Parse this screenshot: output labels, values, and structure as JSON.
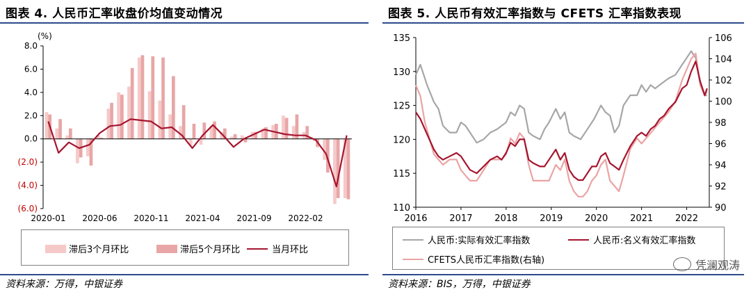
{
  "figure4": {
    "title": "图表 4. 人民币汇率收盘价均值变动情况",
    "source": "资料来源：万得，中银证券",
    "chart_data": {
      "type": "bar",
      "yunit": "(%)",
      "ylim": [
        -6,
        8
      ],
      "yticks": [
        {
          "v": 8,
          "label": "8.0",
          "color": "#000000"
        },
        {
          "v": 6,
          "label": "6.0",
          "color": "#000000"
        },
        {
          "v": 4,
          "label": "4.0",
          "color": "#000000"
        },
        {
          "v": 2,
          "label": "2.0",
          "color": "#000000"
        },
        {
          "v": 0,
          "label": "0.0",
          "color": "#000000"
        },
        {
          "v": -2,
          "label": "(2.0)",
          "color": "#c00000"
        },
        {
          "v": -4,
          "label": "(4.0)",
          "color": "#c00000"
        },
        {
          "v": -6,
          "label": "(6.0)",
          "color": "#c00000"
        }
      ],
      "xtick_labels": [
        {
          "i": 0,
          "label": "2020-01"
        },
        {
          "i": 5,
          "label": "2020-06"
        },
        {
          "i": 10,
          "label": "2020-11"
        },
        {
          "i": 15,
          "label": "2021-04"
        },
        {
          "i": 20,
          "label": "2021-09"
        },
        {
          "i": 25,
          "label": "2022-02"
        }
      ],
      "n_months": 30,
      "series": [
        {
          "name": "滞后3个月环比",
          "kind": "bar",
          "color": "#f6c9c9",
          "values": [
            2.3,
            0.9,
            0.3,
            -2.1,
            -1.5,
            0.3,
            2.6,
            4.0,
            4.5,
            7.0,
            4.1,
            3.3,
            2.1,
            1.1,
            -0.6,
            -0.5,
            1.1,
            0.6,
            0.2,
            0.3,
            0.6,
            0.9,
            1.2,
            2.0,
            1.1,
            0.6,
            -0.2,
            -1.8,
            -5.6,
            -5.1
          ]
        },
        {
          "name": "滞后5个月环比",
          "kind": "bar",
          "color": "#e8a6a6",
          "values": [
            2.1,
            1.7,
            0.9,
            -1.6,
            -2.3,
            0.1,
            3.1,
            3.8,
            6.1,
            7.2,
            7.1,
            7.0,
            5.4,
            2.9,
            1.3,
            1.4,
            1.5,
            0.9,
            0.4,
            -0.3,
            0.6,
            1.0,
            1.3,
            1.8,
            2.1,
            1.1,
            -0.7,
            -2.9,
            -5.1,
            -5.2
          ]
        },
        {
          "name": "当月环比",
          "kind": "line",
          "color": "#a5142e",
          "values": [
            1.5,
            -1.2,
            -0.3,
            -0.8,
            -0.5,
            0.5,
            1.1,
            1.2,
            1.7,
            1.6,
            1.5,
            0.9,
            1.0,
            0.3,
            -0.8,
            0.3,
            1.2,
            0.3,
            -0.7,
            0.0,
            0.4,
            0.8,
            0.6,
            0.4,
            0.3,
            0.3,
            -0.1,
            -1.3,
            -4.1,
            0.3
          ]
        }
      ]
    },
    "legend": {
      "bar3": "滞后3个月环比",
      "bar5": "滞后5个月环比",
      "line": "当月环比"
    }
  },
  "figure5": {
    "title": "图表 5. 人民币有效汇率指数与 CFETS 汇率指数表现",
    "source": "资料来源：BIS，万得，中银证券",
    "chart_data": {
      "type": "line",
      "ylim_left": [
        110,
        135
      ],
      "ylim_right": [
        90,
        106
      ],
      "yticks_left": [
        135,
        130,
        125,
        120,
        115,
        110
      ],
      "yticks_right": [
        106,
        104,
        102,
        100,
        98,
        96,
        94,
        92,
        90
      ],
      "xlim": [
        2016,
        2022.5
      ],
      "xtick_labels": [
        {
          "v": 2016,
          "label": "2016"
        },
        {
          "v": 2017,
          "label": "2017"
        },
        {
          "v": 2018,
          "label": "2018"
        },
        {
          "v": 2019,
          "label": "2019"
        },
        {
          "v": 2020,
          "label": "2020"
        },
        {
          "v": 2021,
          "label": "2021"
        },
        {
          "v": 2022,
          "label": "2022"
        }
      ],
      "series": [
        {
          "name": "人民币:实际有效汇率指数",
          "axis": "left",
          "color": "#a6a6a6",
          "points": [
            [
              2016.0,
              129.5
            ],
            [
              2016.1,
              131.0
            ],
            [
              2016.25,
              128.0
            ],
            [
              2016.4,
              125.5
            ],
            [
              2016.5,
              124.5
            ],
            [
              2016.6,
              122.0
            ],
            [
              2016.75,
              121.0
            ],
            [
              2016.9,
              121.0
            ],
            [
              2017.0,
              122.5
            ],
            [
              2017.1,
              122.0
            ],
            [
              2017.2,
              121.0
            ],
            [
              2017.35,
              119.5
            ],
            [
              2017.5,
              120.0
            ],
            [
              2017.65,
              121.0
            ],
            [
              2017.8,
              121.5
            ],
            [
              2017.9,
              122.0
            ],
            [
              2018.0,
              122.5
            ],
            [
              2018.1,
              124.0
            ],
            [
              2018.2,
              123.5
            ],
            [
              2018.3,
              125.0
            ],
            [
              2018.4,
              124.5
            ],
            [
              2018.5,
              121.0
            ],
            [
              2018.6,
              120.5
            ],
            [
              2018.75,
              120.0
            ],
            [
              2018.85,
              121.5
            ],
            [
              2018.95,
              122.5
            ],
            [
              2019.1,
              124.5
            ],
            [
              2019.2,
              123.0
            ],
            [
              2019.3,
              124.0
            ],
            [
              2019.4,
              121.0
            ],
            [
              2019.5,
              120.5
            ],
            [
              2019.65,
              120.0
            ],
            [
              2019.8,
              121.5
            ],
            [
              2019.95,
              123.0
            ],
            [
              2020.1,
              125.0
            ],
            [
              2020.2,
              124.0
            ],
            [
              2020.3,
              123.5
            ],
            [
              2020.4,
              121.0
            ],
            [
              2020.5,
              122.0
            ],
            [
              2020.6,
              125.0
            ],
            [
              2020.75,
              126.5
            ],
            [
              2020.9,
              126.5
            ],
            [
              2021.0,
              128.0
            ],
            [
              2021.1,
              127.0
            ],
            [
              2021.2,
              128.0
            ],
            [
              2021.3,
              127.5
            ],
            [
              2021.4,
              128.0
            ],
            [
              2021.5,
              128.5
            ],
            [
              2021.6,
              129.0
            ],
            [
              2021.75,
              129.5
            ],
            [
              2021.9,
              131.0
            ],
            [
              2022.0,
              132.0
            ],
            [
              2022.1,
              133.0
            ],
            [
              2022.2,
              132.0
            ],
            [
              2022.3,
              128.0
            ],
            [
              2022.4,
              126.5
            ],
            [
              2022.45,
              126.5
            ]
          ]
        },
        {
          "name": "人民币:名义有效汇率指数",
          "axis": "left",
          "color": "#a5142e",
          "points": [
            [
              2016.0,
              124.0
            ],
            [
              2016.1,
              123.0
            ],
            [
              2016.2,
              121.5
            ],
            [
              2016.3,
              120.0
            ],
            [
              2016.4,
              118.5
            ],
            [
              2016.5,
              117.5
            ],
            [
              2016.6,
              117.0
            ],
            [
              2016.75,
              117.5
            ],
            [
              2016.9,
              118.0
            ],
            [
              2017.0,
              117.5
            ],
            [
              2017.1,
              116.5
            ],
            [
              2017.2,
              115.5
            ],
            [
              2017.35,
              115.0
            ],
            [
              2017.5,
              116.0
            ],
            [
              2017.65,
              117.0
            ],
            [
              2017.8,
              117.5
            ],
            [
              2017.9,
              117.0
            ],
            [
              2018.0,
              118.0
            ],
            [
              2018.1,
              119.5
            ],
            [
              2018.2,
              119.0
            ],
            [
              2018.3,
              120.0
            ],
            [
              2018.4,
              120.0
            ],
            [
              2018.5,
              117.0
            ],
            [
              2018.6,
              116.5
            ],
            [
              2018.75,
              116.0
            ],
            [
              2018.85,
              116.0
            ],
            [
              2018.95,
              117.0
            ],
            [
              2019.1,
              118.5
            ],
            [
              2019.2,
              117.0
            ],
            [
              2019.3,
              118.0
            ],
            [
              2019.4,
              115.5
            ],
            [
              2019.5,
              114.5
            ],
            [
              2019.6,
              114.0
            ],
            [
              2019.7,
              114.0
            ],
            [
              2019.8,
              115.0
            ],
            [
              2019.9,
              116.0
            ],
            [
              2020.0,
              116.0
            ],
            [
              2020.1,
              117.5
            ],
            [
              2020.2,
              118.0
            ],
            [
              2020.3,
              116.5
            ],
            [
              2020.4,
              116.0
            ],
            [
              2020.5,
              115.5
            ],
            [
              2020.6,
              117.0
            ],
            [
              2020.75,
              119.0
            ],
            [
              2020.9,
              120.5
            ],
            [
              2021.0,
              121.0
            ],
            [
              2021.1,
              120.5
            ],
            [
              2021.2,
              121.5
            ],
            [
              2021.3,
              122.0
            ],
            [
              2021.4,
              123.0
            ],
            [
              2021.5,
              123.5
            ],
            [
              2021.6,
              124.5
            ],
            [
              2021.75,
              125.5
            ],
            [
              2021.9,
              127.5
            ],
            [
              2022.0,
              128.0
            ],
            [
              2022.1,
              130.0
            ],
            [
              2022.2,
              131.5
            ],
            [
              2022.3,
              128.5
            ],
            [
              2022.4,
              126.5
            ],
            [
              2022.45,
              127.5
            ]
          ]
        },
        {
          "name": "CFETS人民币汇率指数(右轴)",
          "axis": "right",
          "color": "#eba3a3",
          "points": [
            [
              2016.0,
              101.5
            ],
            [
              2016.1,
              100.5
            ],
            [
              2016.2,
              98.0
            ],
            [
              2016.3,
              96.5
            ],
            [
              2016.4,
              95.0
            ],
            [
              2016.5,
              94.5
            ],
            [
              2016.6,
              94.0
            ],
            [
              2016.75,
              94.5
            ],
            [
              2016.9,
              94.5
            ],
            [
              2017.0,
              93.5
            ],
            [
              2017.1,
              93.0
            ],
            [
              2017.2,
              92.5
            ],
            [
              2017.35,
              92.5
            ],
            [
              2017.5,
              93.5
            ],
            [
              2017.65,
              94.5
            ],
            [
              2017.8,
              94.5
            ],
            [
              2017.9,
              94.5
            ],
            [
              2018.0,
              95.0
            ],
            [
              2018.1,
              96.5
            ],
            [
              2018.2,
              96.0
            ],
            [
              2018.3,
              97.0
            ],
            [
              2018.4,
              96.5
            ],
            [
              2018.5,
              94.0
            ],
            [
              2018.6,
              92.5
            ],
            [
              2018.75,
              92.5
            ],
            [
              2018.85,
              92.5
            ],
            [
              2018.95,
              92.5
            ],
            [
              2019.1,
              94.0
            ],
            [
              2019.2,
              93.5
            ],
            [
              2019.3,
              94.5
            ],
            [
              2019.4,
              92.5
            ],
            [
              2019.5,
              91.5
            ],
            [
              2019.6,
              91.0
            ],
            [
              2019.7,
              91.0
            ],
            [
              2019.8,
              91.5
            ],
            [
              2019.9,
              92.5
            ],
            [
              2020.0,
              93.0
            ],
            [
              2020.1,
              94.0
            ],
            [
              2020.2,
              94.5
            ],
            [
              2020.3,
              92.5
            ],
            [
              2020.4,
              92.0
            ],
            [
              2020.5,
              91.5
            ],
            [
              2020.6,
              93.0
            ],
            [
              2020.75,
              95.5
            ],
            [
              2020.9,
              96.5
            ],
            [
              2021.0,
              96.0
            ],
            [
              2021.1,
              96.5
            ],
            [
              2021.2,
              97.0
            ],
            [
              2021.3,
              97.5
            ],
            [
              2021.4,
              98.0
            ],
            [
              2021.5,
              98.5
            ],
            [
              2021.6,
              99.0
            ],
            [
              2021.75,
              100.0
            ],
            [
              2021.9,
              102.0
            ],
            [
              2022.0,
              103.0
            ],
            [
              2022.1,
              104.0
            ],
            [
              2022.2,
              104.5
            ],
            [
              2022.3,
              101.5
            ],
            [
              2022.4,
              100.5
            ],
            [
              2022.45,
              101.0
            ]
          ]
        }
      ]
    },
    "legend": {
      "reer": "人民币:实际有效汇率指数",
      "neer": "人民币:名义有效汇率指数",
      "cfets": "CFETS人民币汇率指数(右轴)"
    }
  },
  "watermark": "凭澜观涛"
}
